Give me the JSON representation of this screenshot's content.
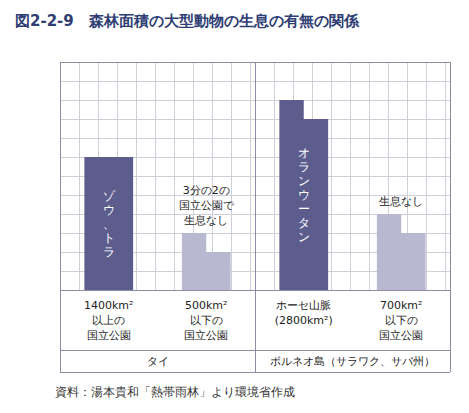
{
  "chart_data": {
    "type": "bar",
    "title": "図2-2-9　森林面積の大型動物の生息の有無の関係",
    "categories": [
      "1400km²\n以上の\n国立公園",
      "500km²\n以下の\n国立公園",
      "ホーセ山脈\n(2800km²)",
      "700km²\n以下の\n国立公園"
    ],
    "series": [
      {
        "values": [
          7,
          3,
          10,
          4
        ]
      },
      {
        "values": [
          7,
          2,
          9,
          3
        ]
      }
    ],
    "colors": [
      "#5c5d8d",
      "#b9b8d1",
      "#5c5d8d",
      "#b9b8d1"
    ],
    "bar_labels": [
      "ゾウ、トラ",
      null,
      "オランウータン",
      null
    ],
    "annotations": [
      null,
      "3分の2の\n国立公園で\n生息なし",
      null,
      "生息なし"
    ],
    "group_labels": [
      "タイ",
      "ボルネオ島（サラワク、サバ州）"
    ],
    "group_sizes": [
      2,
      2
    ],
    "source": "資料：湯本貴和「熱帯雨林」より環境省作成",
    "ylim": [
      0,
      12
    ],
    "yticks": [
      0,
      1,
      2,
      3,
      4,
      5,
      6,
      7,
      8,
      9,
      10,
      11,
      12
    ],
    "grid": true,
    "tick_labels": "x"
  }
}
